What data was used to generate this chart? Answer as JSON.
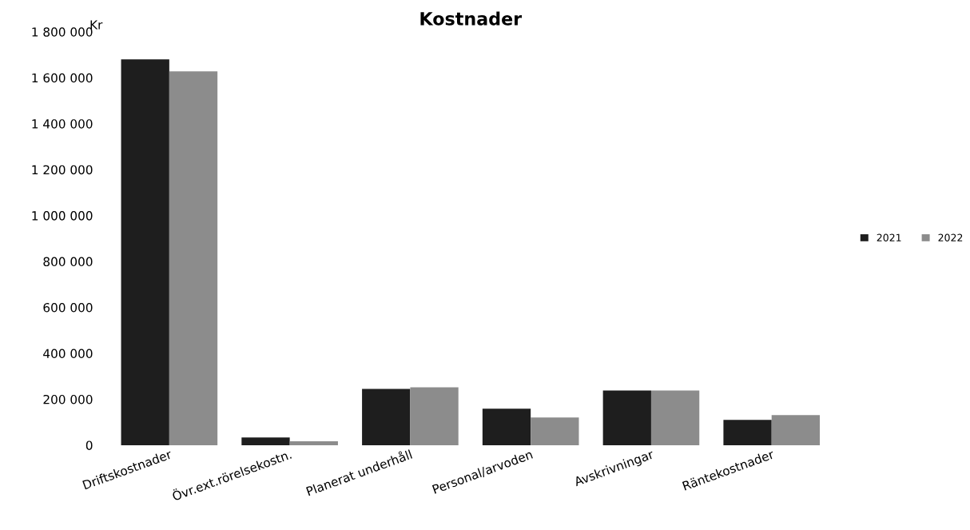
{
  "chart_data": {
    "type": "bar",
    "title": "Kostnader",
    "ylabel": "Kr",
    "categories": [
      "Driftskostnader",
      "Övr.ext.rörelsekostn.",
      "Planerat underhåll",
      "Personal/arvoden",
      "Avskrivningar",
      "Räntekostnader"
    ],
    "series": [
      {
        "name": "2021",
        "color": "#1e1e1e",
        "values": [
          1680000,
          34000,
          245000,
          159000,
          238000,
          110000
        ]
      },
      {
        "name": "2022",
        "color": "#8c8c8c",
        "values": [
          1628000,
          17000,
          252000,
          121000,
          238000,
          131000
        ]
      }
    ],
    "ylim": [
      0,
      1800000
    ],
    "yticks": [
      {
        "value": 0,
        "label": "0"
      },
      {
        "value": 200000,
        "label": "200 000"
      },
      {
        "value": 400000,
        "label": "400 000"
      },
      {
        "value": 600000,
        "label": "600 000"
      },
      {
        "value": 800000,
        "label": "800 000"
      },
      {
        "value": 1000000,
        "label": "1 000 000"
      },
      {
        "value": 1200000,
        "label": "1 200 000"
      },
      {
        "value": 1400000,
        "label": "1 400 000"
      },
      {
        "value": 1600000,
        "label": "1 600 000"
      },
      {
        "value": 1800000,
        "label": "1 800 000"
      }
    ],
    "grid": false,
    "legend": "right"
  }
}
